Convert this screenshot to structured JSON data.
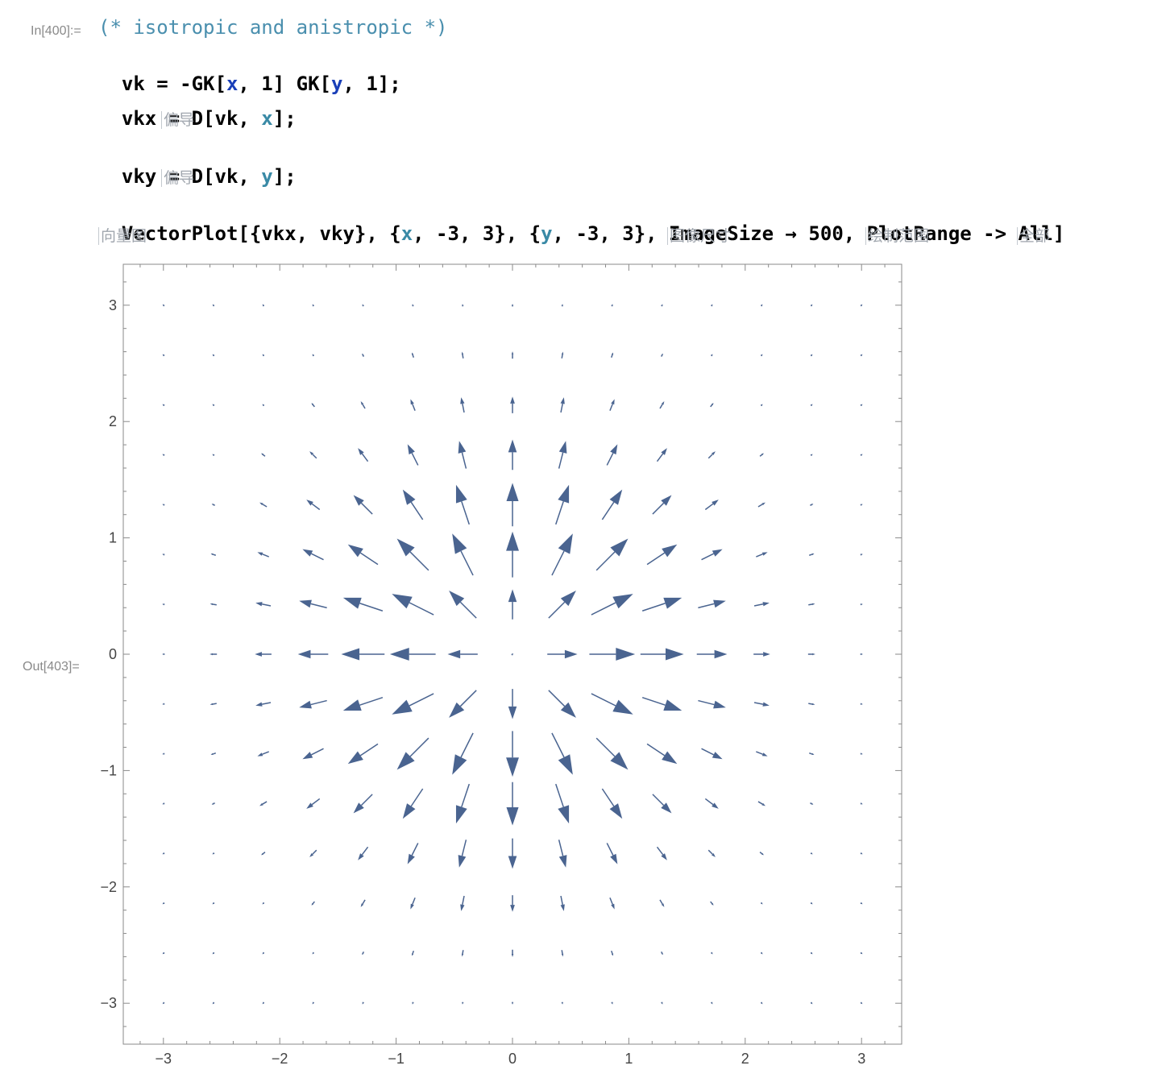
{
  "input": {
    "label": "In[400]:=",
    "comment": "(* isotropic and anistropic *)",
    "lines": [
      {
        "prefix": "vk = -GK[",
        "a": "x",
        "mid": ", 1] GK[",
        "b": "y",
        "suffix": ", 1];"
      },
      {
        "prefix": "vkx = D[vk, ",
        "a": "x",
        "suffix": "];"
      },
      {
        "prefix": "vky = D[vk, ",
        "a": "y",
        "suffix": "];"
      },
      {
        "p1": "VectorPlot[{vkx, vky}, {",
        "v1": "x",
        "p2": ", -3, 3}, {",
        "v2": "y",
        "p3": ", -3, 3}, ImageSize → 500, PlotRange -> All]"
      }
    ],
    "hints": {
      "deriv1": "偏导",
      "deriv2": "偏导",
      "vectorplot": "向量图",
      "imagesize": "图像尺寸",
      "plotrange": "绘制范围",
      "all": "全部"
    }
  },
  "output": {
    "label": "Out[403]="
  },
  "chart_data": {
    "type": "vector_field",
    "function": "gradient of -exp(-(x^2+y^2)/2)",
    "x_range": [
      -3,
      3
    ],
    "y_range": [
      -3,
      3
    ],
    "grid_step": 0.4286,
    "x_ticks": [
      "−3",
      "−2",
      "−1",
      "0",
      "1",
      "2",
      "3"
    ],
    "y_ticks": [
      "3",
      "2",
      "1",
      "0",
      "−1",
      "−2",
      "−3"
    ],
    "tick_values": [
      -3,
      -2,
      -1,
      0,
      1,
      2,
      3
    ],
    "arrow_color": "#4a6490",
    "frame_color": "#8a8a8a"
  }
}
